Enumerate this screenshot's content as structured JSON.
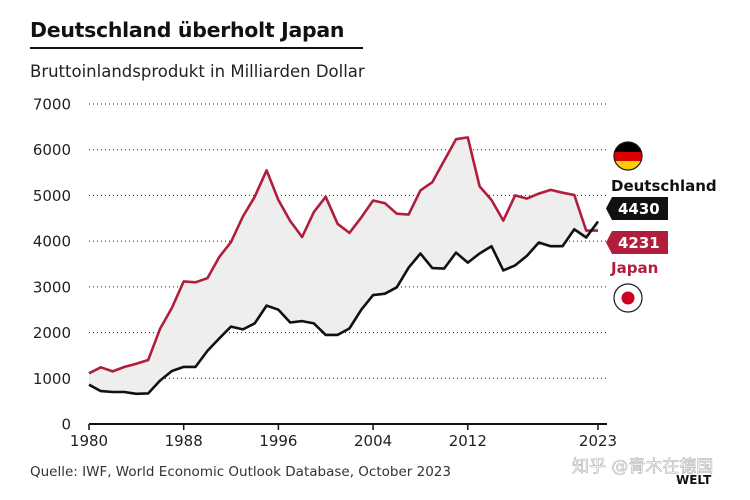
{
  "header": {
    "title": "Deutschland überholt Japan",
    "subtitle": "Bruttoinlandsprodukt in Milliarden Dollar",
    "source": "Quelle: IWF, World Economic Outlook Database, October 2023"
  },
  "watermark": {
    "text": "知乎 @青木在德国",
    "logo": "WELT"
  },
  "colors": {
    "germany": "#111111",
    "japan": "#b01e3c",
    "fill": "#eeeeee",
    "grid": "#222222"
  },
  "icons": {
    "germany": "flag-germany-icon",
    "japan": "flag-japan-icon"
  },
  "chart_data": {
    "type": "line",
    "title": "Deutschland überholt Japan",
    "subtitle": "Bruttoinlandsprodukt in Milliarden Dollar",
    "xlim": [
      1980,
      2023
    ],
    "ylim": [
      0,
      7000
    ],
    "x_ticks": [
      1980,
      1988,
      1996,
      2004,
      2012,
      2023
    ],
    "y_ticks": [
      0,
      1000,
      2000,
      3000,
      4000,
      5000,
      6000,
      7000
    ],
    "grid": "horizontal dotted",
    "x": [
      1980,
      1981,
      1982,
      1983,
      1984,
      1985,
      1986,
      1987,
      1988,
      1989,
      1990,
      1991,
      1992,
      1993,
      1994,
      1995,
      1996,
      1997,
      1998,
      1999,
      2000,
      2001,
      2002,
      2003,
      2004,
      2005,
      2006,
      2007,
      2008,
      2009,
      2010,
      2011,
      2012,
      2013,
      2014,
      2015,
      2016,
      2017,
      2018,
      2019,
      2020,
      2021,
      2022,
      2023
    ],
    "series": [
      {
        "name": "Deutschland",
        "end_label": "4430",
        "values": [
          860,
          720,
          700,
          700,
          660,
          670,
          950,
          1160,
          1250,
          1250,
          1600,
          1870,
          2130,
          2070,
          2200,
          2590,
          2500,
          2220,
          2250,
          2200,
          1950,
          1950,
          2090,
          2500,
          2820,
          2850,
          2990,
          3420,
          3730,
          3410,
          3400,
          3750,
          3530,
          3730,
          3890,
          3360,
          3470,
          3680,
          3970,
          3890,
          3890,
          4260,
          4080,
          4430
        ]
      },
      {
        "name": "Japan",
        "end_label": "4231",
        "values": [
          1110,
          1240,
          1150,
          1250,
          1320,
          1400,
          2080,
          2540,
          3120,
          3100,
          3190,
          3650,
          3980,
          4540,
          4970,
          5550,
          4900,
          4440,
          4090,
          4640,
          4970,
          4380,
          4180,
          4520,
          4890,
          4830,
          4600,
          4580,
          5110,
          5290,
          5760,
          6230,
          6270,
          5200,
          4900,
          4450,
          5000,
          4930,
          5040,
          5120,
          5060,
          5010,
          4230,
          4231
        ]
      }
    ]
  }
}
